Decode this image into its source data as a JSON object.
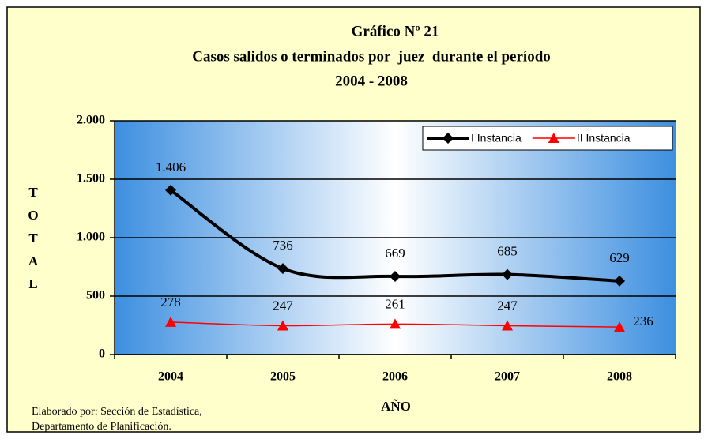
{
  "chart_data": {
    "type": "line",
    "title": [
      "Gráfico Nº 21",
      "Casos salidos o terminados por  juez  durante el período",
      "2004 - 2008"
    ],
    "categories": [
      "2004",
      "2005",
      "2006",
      "2007",
      "2008"
    ],
    "series": [
      {
        "name": "I Instancia",
        "color": "#000000",
        "marker": "diamond",
        "values": [
          1406,
          736,
          669,
          685,
          629
        ],
        "value_labels": [
          "1.406",
          "736",
          "669",
          "685",
          "629"
        ]
      },
      {
        "name": "II Instancia",
        "color": "#ff0000",
        "marker": "triangle",
        "values": [
          278,
          247,
          261,
          247,
          236
        ]
      }
    ],
    "ylim": [
      0,
      2000
    ],
    "yticks": [
      0,
      500,
      {
        "value": 1000,
        "label": "1.000"
      },
      {
        "value": 1500,
        "label": "1.500"
      },
      {
        "value": 2000,
        "label": "2.000"
      }
    ],
    "ylabel": "TOTAL",
    "xlabel": "AÑO",
    "grid": true,
    "legend": "upper right",
    "note": [
      "Elaborado por: Sección de Estadística,",
      "Departamento de Planificación."
    ]
  }
}
